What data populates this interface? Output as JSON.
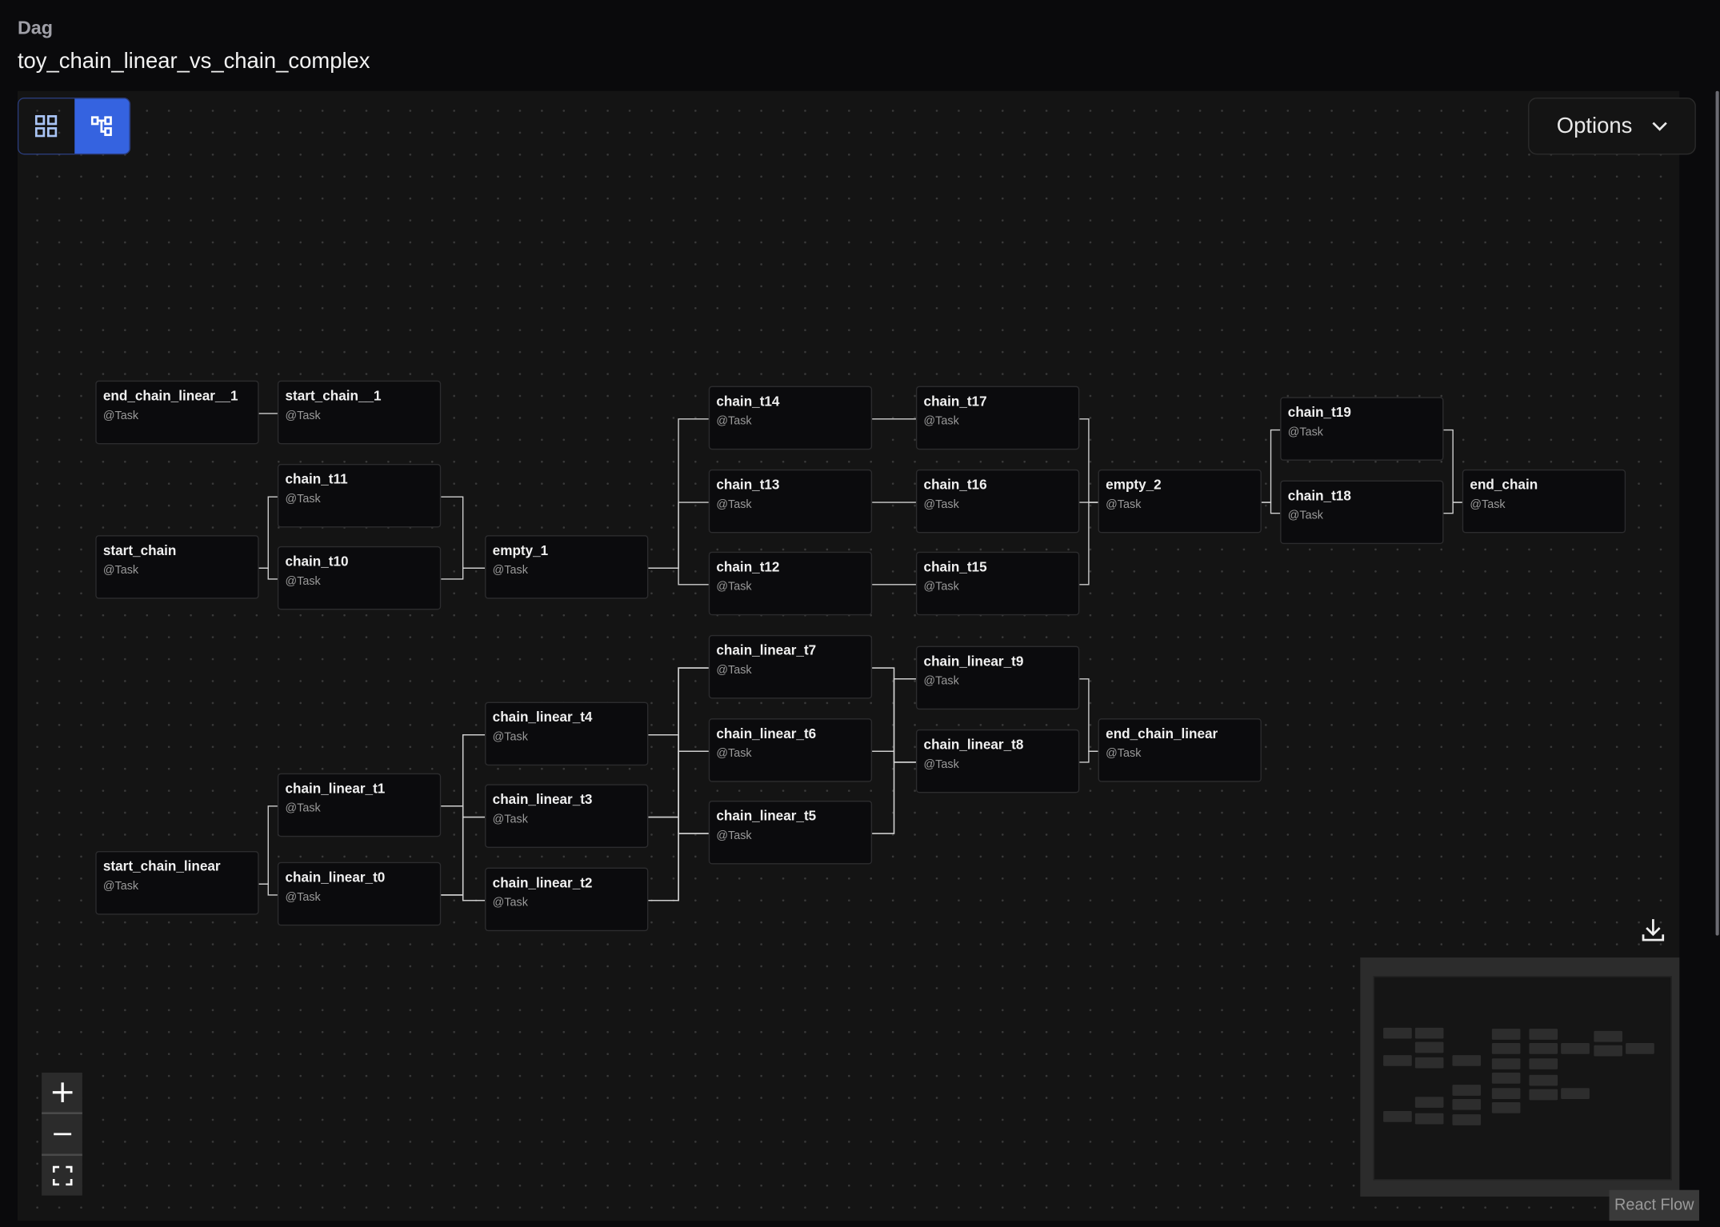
{
  "header": {
    "breadcrumb": "Dag",
    "title": "toy_chain_linear_vs_chain_complex"
  },
  "toolbar": {
    "view_toggle": [
      {
        "icon": "grid-icon",
        "active": false
      },
      {
        "icon": "graph-icon",
        "active": true
      }
    ],
    "options_label": "Options"
  },
  "colors": {
    "accent": "#3563e0",
    "canvas": "#141414",
    "node_bg": "#0b0b0d",
    "edge": "#d0d0d0"
  },
  "nodes": [
    {
      "id": "end_chain_linear__1",
      "type": "@Task"
    },
    {
      "id": "start_chain__1",
      "type": "@Task"
    },
    {
      "id": "chain_t11",
      "type": "@Task"
    },
    {
      "id": "start_chain",
      "type": "@Task"
    },
    {
      "id": "chain_t10",
      "type": "@Task"
    },
    {
      "id": "empty_1",
      "type": "@Task"
    },
    {
      "id": "chain_t14",
      "type": "@Task"
    },
    {
      "id": "chain_t13",
      "type": "@Task"
    },
    {
      "id": "chain_t12",
      "type": "@Task"
    },
    {
      "id": "chain_t17",
      "type": "@Task"
    },
    {
      "id": "chain_t16",
      "type": "@Task"
    },
    {
      "id": "chain_t15",
      "type": "@Task"
    },
    {
      "id": "empty_2",
      "type": "@Task"
    },
    {
      "id": "chain_t19",
      "type": "@Task"
    },
    {
      "id": "chain_t18",
      "type": "@Task"
    },
    {
      "id": "end_chain",
      "type": "@Task"
    },
    {
      "id": "chain_linear_t7",
      "type": "@Task"
    },
    {
      "id": "chain_linear_t6",
      "type": "@Task"
    },
    {
      "id": "chain_linear_t5",
      "type": "@Task"
    },
    {
      "id": "chain_linear_t9",
      "type": "@Task"
    },
    {
      "id": "chain_linear_t8",
      "type": "@Task"
    },
    {
      "id": "end_chain_linear",
      "type": "@Task"
    },
    {
      "id": "chain_linear_t4",
      "type": "@Task"
    },
    {
      "id": "chain_linear_t3",
      "type": "@Task"
    },
    {
      "id": "chain_linear_t2",
      "type": "@Task"
    },
    {
      "id": "chain_linear_t1",
      "type": "@Task"
    },
    {
      "id": "chain_linear_t0",
      "type": "@Task"
    },
    {
      "id": "start_chain_linear",
      "type": "@Task"
    }
  ],
  "edges": [
    [
      "end_chain_linear__1",
      "start_chain__1"
    ],
    [
      "start_chain",
      "chain_t11"
    ],
    [
      "start_chain",
      "chain_t10"
    ],
    [
      "chain_t11",
      "empty_1"
    ],
    [
      "chain_t10",
      "empty_1"
    ],
    [
      "empty_1",
      "chain_t14"
    ],
    [
      "empty_1",
      "chain_t13"
    ],
    [
      "empty_1",
      "chain_t12"
    ],
    [
      "chain_t14",
      "chain_t17"
    ],
    [
      "chain_t13",
      "chain_t16"
    ],
    [
      "chain_t12",
      "chain_t15"
    ],
    [
      "chain_t17",
      "empty_2"
    ],
    [
      "chain_t16",
      "empty_2"
    ],
    [
      "chain_t15",
      "empty_2"
    ],
    [
      "empty_2",
      "chain_t19"
    ],
    [
      "empty_2",
      "chain_t18"
    ],
    [
      "chain_t19",
      "end_chain"
    ],
    [
      "chain_t18",
      "end_chain"
    ],
    [
      "start_chain_linear",
      "chain_linear_t1"
    ],
    [
      "start_chain_linear",
      "chain_linear_t0"
    ],
    [
      "chain_linear_t1",
      "chain_linear_t4"
    ],
    [
      "chain_linear_t1",
      "chain_linear_t3"
    ],
    [
      "chain_linear_t1",
      "chain_linear_t2"
    ],
    [
      "chain_linear_t0",
      "chain_linear_t4"
    ],
    [
      "chain_linear_t0",
      "chain_linear_t3"
    ],
    [
      "chain_linear_t0",
      "chain_linear_t2"
    ],
    [
      "chain_linear_t4",
      "chain_linear_t7"
    ],
    [
      "chain_linear_t4",
      "chain_linear_t6"
    ],
    [
      "chain_linear_t4",
      "chain_linear_t5"
    ],
    [
      "chain_linear_t3",
      "chain_linear_t7"
    ],
    [
      "chain_linear_t3",
      "chain_linear_t6"
    ],
    [
      "chain_linear_t3",
      "chain_linear_t5"
    ],
    [
      "chain_linear_t2",
      "chain_linear_t7"
    ],
    [
      "chain_linear_t2",
      "chain_linear_t6"
    ],
    [
      "chain_linear_t2",
      "chain_linear_t5"
    ],
    [
      "chain_linear_t7",
      "chain_linear_t9"
    ],
    [
      "chain_linear_t7",
      "chain_linear_t8"
    ],
    [
      "chain_linear_t6",
      "chain_linear_t9"
    ],
    [
      "chain_linear_t6",
      "chain_linear_t8"
    ],
    [
      "chain_linear_t5",
      "chain_linear_t9"
    ],
    [
      "chain_linear_t5",
      "chain_linear_t8"
    ],
    [
      "chain_linear_t9",
      "end_chain_linear"
    ],
    [
      "chain_linear_t8",
      "end_chain_linear"
    ]
  ],
  "controls": {
    "zoom_in": "plus-icon",
    "zoom_out": "minus-icon",
    "fit_view": "fit-view-icon"
  },
  "attribution": "React Flow"
}
